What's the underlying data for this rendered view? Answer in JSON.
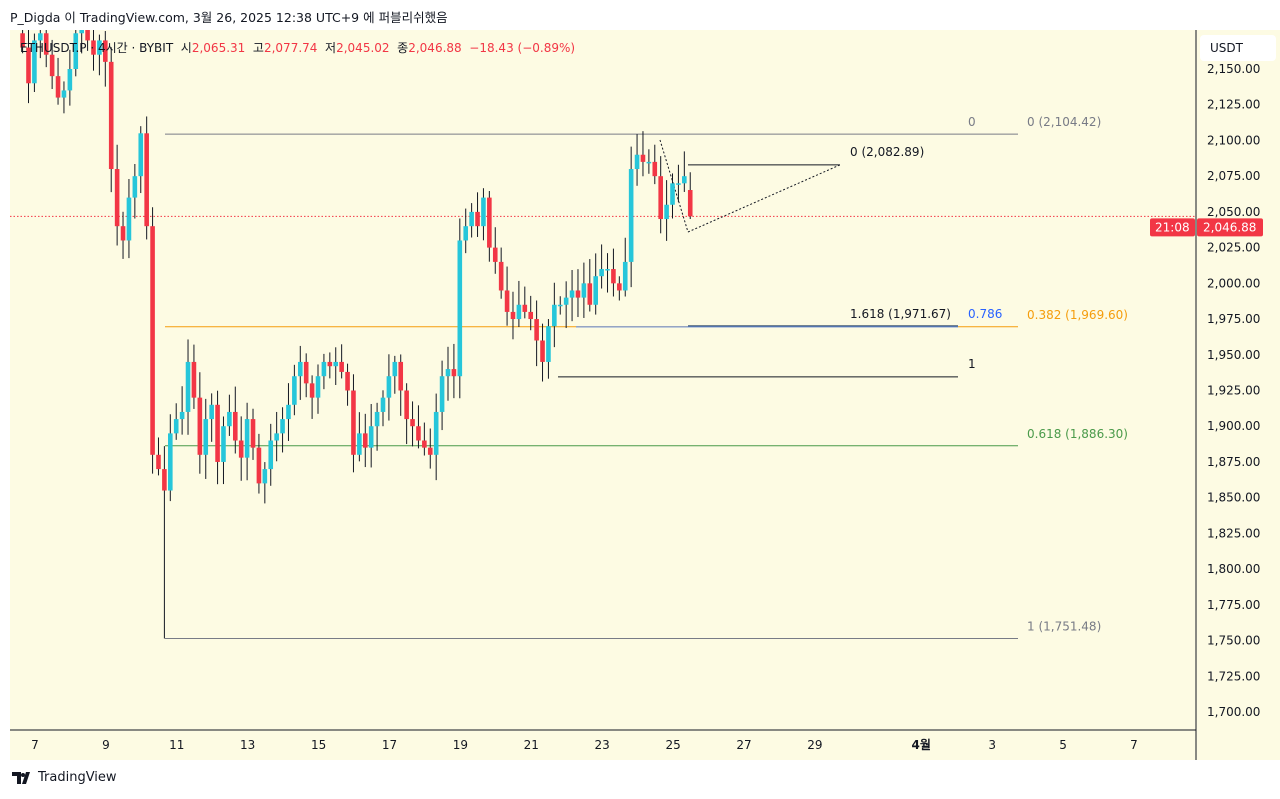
{
  "publish_line": "P_Digda 이 TradingView.com, 3월 26, 2025 12:38 UTC+9 에 퍼블리쉬했음",
  "legend": {
    "symbol": "ETHUSDT.P · 4시간 · BYBIT",
    "o_label": "시",
    "o": "2,065.31",
    "h_label": "고",
    "h": "2,077.74",
    "l_label": "저",
    "l": "2,045.02",
    "c_label": "종",
    "c": "2,046.88",
    "change": "−18.43 (−0.89%)"
  },
  "currency": "USDT",
  "current_price": {
    "label": "2,046.88",
    "countdown": "21:08",
    "value": 2046.88,
    "color": "#f23645"
  },
  "brand": "TradingView",
  "colors": {
    "up": "#26c6da",
    "down": "#f23645",
    "bg": "#fdfbe3",
    "fib_orange": "#f59d0c",
    "fib_green": "#4a9a4a",
    "fib_blue": "#2962ff"
  },
  "chart_data": {
    "type": "candlestick",
    "title": "ETHUSDT.P 4h BYBIT",
    "ylim": [
      1687,
      2160
    ],
    "y_ticks": [
      "2,150.00",
      "2,125.00",
      "2,100.00",
      "2,075.00",
      "2,050.00",
      "2,025.00",
      "2,000.00",
      "1,975.00",
      "1,950.00",
      "1,925.00",
      "1,900.00",
      "1,875.00",
      "1,850.00",
      "1,825.00",
      "1,800.00",
      "1,775.00",
      "1,750.00",
      "1,725.00",
      "1,700.00"
    ],
    "y_tick_values": [
      2150,
      2125,
      2100,
      2075,
      2050,
      2025,
      2000,
      1975,
      1950,
      1925,
      1900,
      1875,
      1850,
      1825,
      1800,
      1775,
      1750,
      1725,
      1700
    ],
    "x_ticks": [
      "7",
      "9",
      "11",
      "13",
      "15",
      "17",
      "19",
      "21",
      "23",
      "25",
      "27",
      "29",
      "4월",
      "3",
      "5",
      "7"
    ],
    "x_tick_days": [
      7,
      9,
      11,
      13,
      15,
      17,
      19,
      21,
      23,
      25,
      27,
      29,
      32,
      34,
      36,
      38
    ],
    "first_candle_day": 6.65,
    "candles_per_day": 6,
    "close": [
      2165,
      2140,
      2170,
      2175,
      2160,
      2145,
      2130,
      2135,
      2150,
      2175,
      2180,
      2170,
      2160,
      2170,
      2155,
      2080,
      2040,
      2030,
      2060,
      2075,
      2105,
      2040,
      1880,
      1870,
      1855,
      1895,
      1905,
      1910,
      1945,
      1920,
      1880,
      1905,
      1915,
      1875,
      1900,
      1910,
      1890,
      1878,
      1905,
      1885,
      1860,
      1870,
      1890,
      1895,
      1905,
      1915,
      1935,
      1945,
      1930,
      1920,
      1935,
      1945,
      1942,
      1945,
      1938,
      1925,
      1880,
      1895,
      1885,
      1900,
      1910,
      1920,
      1935,
      1945,
      1925,
      1905,
      1900,
      1890,
      1885,
      1880,
      1910,
      1935,
      1940,
      1935,
      2030,
      2040,
      2050,
      2040,
      2060,
      2025,
      2015,
      1995,
      1980,
      1975,
      1985,
      1980,
      1975,
      1960,
      1945,
      1970,
      1985,
      1985,
      1990,
      1995,
      1990,
      2000,
      1985,
      2005,
      2010,
      2010,
      2000,
      1995,
      2015,
      2080,
      2090,
      2085,
      2085,
      2075,
      2045,
      2055,
      2070,
      2070,
      2075,
      2046.88
    ],
    "last_candle": {
      "open": 2065.31,
      "high": 2077.74,
      "low": 2045.02,
      "close": 2046.88
    },
    "wick_overrides": {
      "24": {
        "low": 1751.48
      },
      "104": {
        "high": 2104.42
      },
      "108": {
        "low": 2035
      },
      "20": {
        "high": 2110
      }
    },
    "fib_1": {
      "levels": [
        {
          "ratio": "0",
          "label": "0 (2,104.42)",
          "value": 2104.42,
          "color": "#787b86"
        },
        {
          "ratio": "0.382",
          "label": "0.382 (1,969.60)",
          "value": 1969.6,
          "color": "#f59d0c"
        },
        {
          "ratio": "0.618",
          "label": "0.618 (1,886.30)",
          "value": 1886.3,
          "color": "#4a9a4a"
        },
        {
          "ratio": "1",
          "label": "1 (1,751.48)",
          "value": 1751.48,
          "color": "#787b86"
        }
      ]
    },
    "fib_2": {
      "levels": [
        {
          "label": "0 (2,082.89)",
          "value": 2082.89
        },
        {
          "label": "1.618 (1,971.67)",
          "value": 1971.67
        },
        {
          "label": "0.786",
          "value": 1971.67,
          "color": "#2962ff"
        },
        {
          "label": "1",
          "value": 1934.5
        }
      ]
    }
  }
}
